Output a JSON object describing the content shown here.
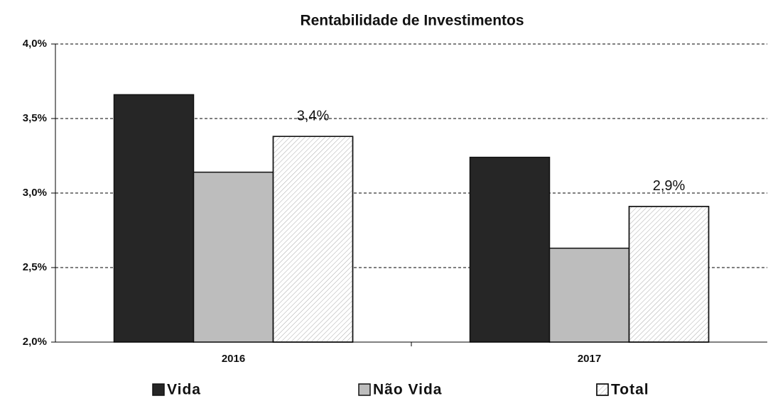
{
  "chart_data": {
    "type": "bar",
    "title": "Rentabilidade de Investimentos",
    "categories": [
      "2016",
      "2017"
    ],
    "series": [
      {
        "name": "Vida",
        "color": "#262626",
        "values": [
          3.66,
          3.24
        ]
      },
      {
        "name": "Não Vida",
        "color": "#bdbdbd",
        "values": [
          3.14,
          2.63
        ]
      },
      {
        "name": "Total",
        "color": "#ffffff",
        "hatch": true,
        "values": [
          3.38,
          2.91
        ],
        "value_labels": [
          "3,4%",
          "2,9%"
        ]
      }
    ],
    "ylim": [
      2.0,
      4.0
    ],
    "yticks": [
      {
        "value": 2.0,
        "label": "2,0%"
      },
      {
        "value": 2.5,
        "label": "2,5%"
      },
      {
        "value": 3.0,
        "label": "3,0%"
      },
      {
        "value": 3.5,
        "label": "3,5%"
      },
      {
        "value": 4.0,
        "label": "4,0%"
      }
    ],
    "grid": true,
    "legend": "bottom"
  }
}
